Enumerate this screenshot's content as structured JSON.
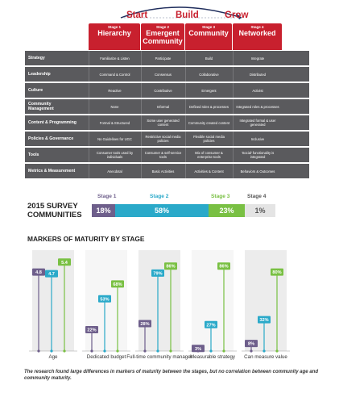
{
  "phases": [
    "Start",
    "Build",
    "Grow"
  ],
  "stages": [
    {
      "stage": "Stage 1",
      "name": "Hierarchy"
    },
    {
      "stage": "Stage 2",
      "name": "Emergent Community"
    },
    {
      "stage": "Stage 3",
      "name": "Community"
    },
    {
      "stage": "Stage 4",
      "name": "Networked"
    }
  ],
  "matrix_rows": [
    {
      "label": "Strategy",
      "cells": [
        "Familiarize & Listen",
        "Participate",
        "Build",
        "Integrate"
      ]
    },
    {
      "label": "Leadership",
      "cells": [
        "Command & Control",
        "Consensus",
        "Collaborative",
        "Distributed"
      ]
    },
    {
      "label": "Culture",
      "cells": [
        "Reactive",
        "Contributive",
        "Emergent",
        "Activist"
      ]
    },
    {
      "label": "Community Management",
      "cells": [
        "None",
        "Informal",
        "Defined roles & processes",
        "Integrated roles & processes"
      ]
    },
    {
      "label": "Content & Programming",
      "cells": [
        "Formal & Structured",
        "Some user generated content",
        "Community created content",
        "Integrated formal & user generated"
      ]
    },
    {
      "label": "Policies & Governance",
      "cells": [
        "No Guidelines for UGC",
        "Restrictive social media policies",
        "Flexible social media policies",
        "Inclusive"
      ]
    },
    {
      "label": "Tools",
      "cells": [
        "Consumer tools used by individuals",
        "Consumer & self-service tools",
        "Mix of consumer & enterprise tools",
        "'Social' functionality is integrated"
      ]
    },
    {
      "label": "Metrics & Measurement",
      "cells": [
        "Anecdotal",
        "Basic Activities",
        "Activities & Content",
        "Behaviors & Outcomes"
      ]
    }
  ],
  "survey": {
    "title": "2015 SURVEY COMMUNITIES",
    "stage_labels": [
      "Stage 1",
      "Stage 2",
      "Stage 3",
      "Stage 4"
    ],
    "percent_labels": [
      "18%",
      "58%",
      "23%",
      "1%"
    ],
    "values": [
      18,
      58,
      23,
      1
    ]
  },
  "colors": {
    "red": "#c8202e",
    "gray": "#5a5a5d",
    "stage1": "#6e5f8b",
    "stage2": "#2aa9c9",
    "stage3": "#79c043",
    "stage4": "#9a9a9a"
  },
  "markers": {
    "title": "MARKERS OF MATURITY BY STAGE",
    "caption": "The research found large differences in markers of maturity between the stages, but no correlation between community age and community maturity."
  },
  "chart_data": {
    "type": "lollipop",
    "title": "MARKERS OF MATURITY BY STAGE",
    "categories": [
      "Age",
      "Dedicated budget",
      "Full-time community manager",
      "Measurable strategy",
      "Can measure value"
    ],
    "series": [
      {
        "values": [
          4.8,
          22,
          28,
          3,
          8
        ],
        "labels": [
          "4.8",
          "22%",
          "28%",
          "3%",
          "8%"
        ]
      },
      {
        "values": [
          4.7,
          53,
          79,
          27,
          32
        ],
        "labels": [
          "4.7",
          "53%",
          "79%",
          "27%",
          "32%"
        ]
      },
      {
        "values": [
          5.4,
          68,
          86,
          86,
          80
        ],
        "labels": [
          "5.4",
          "68%",
          "86%",
          "86%",
          "80%"
        ]
      }
    ]
  }
}
